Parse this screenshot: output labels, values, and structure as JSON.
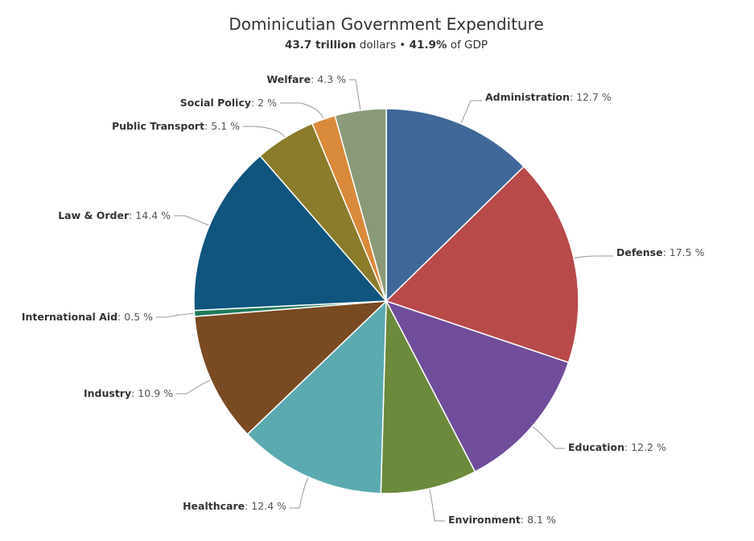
{
  "header": {
    "title": "Dominicutian Government Expenditure",
    "total_value": "43.7 trillion",
    "total_unit": "dollars",
    "separator": "•",
    "gdp_share": "41.9%",
    "gdp_suffix": "of GDP"
  },
  "chart_data": {
    "type": "pie",
    "title": "Dominicutian Government Expenditure",
    "subtitle": "43.7 trillion dollars • 41.9% of GDP",
    "value_suffix": " %",
    "slices": [
      {
        "name": "Administration",
        "value": 12.7,
        "color": "#3f6898"
      },
      {
        "name": "Defense",
        "value": 17.5,
        "color": "#b84a4a"
      },
      {
        "name": "Education",
        "value": 12.2,
        "color": "#6f4d9a"
      },
      {
        "name": "Environment",
        "value": 8.1,
        "color": "#6b8a3c"
      },
      {
        "name": "Healthcare",
        "value": 12.4,
        "color": "#5aaab0"
      },
      {
        "name": "Industry",
        "value": 10.9,
        "color": "#7a4a22"
      },
      {
        "name": "International Aid",
        "value": 0.5,
        "color": "#1f7a5a"
      },
      {
        "name": "Law & Order",
        "value": 14.4,
        "color": "#10557e"
      },
      {
        "name": "Public Transport",
        "value": 5.1,
        "color": "#8a7c2a"
      },
      {
        "name": "Social Policy",
        "value": 2,
        "color": "#d98a3a"
      },
      {
        "name": "Welfare",
        "value": 4.3,
        "color": "#8a9a78"
      }
    ]
  }
}
